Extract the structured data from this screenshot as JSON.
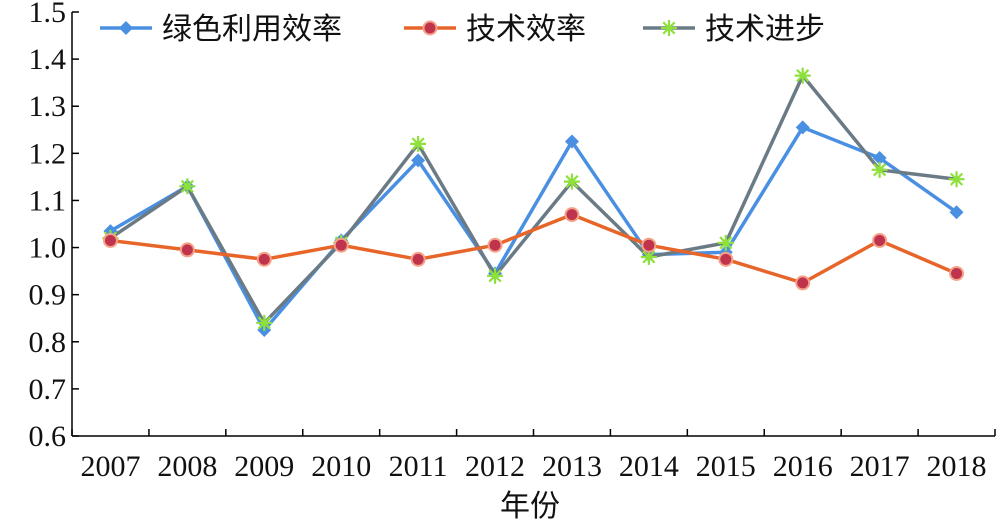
{
  "chart_data": {
    "type": "line",
    "title": "",
    "xlabel": "年份",
    "ylabel": "",
    "ylim": [
      0.6,
      1.5
    ],
    "y_ticks": [
      "0.6",
      "0.7",
      "0.8",
      "0.9",
      "1.0",
      "1.1",
      "1.2",
      "1.3",
      "1.4",
      "1.5"
    ],
    "categories": [
      "2007",
      "2008",
      "2009",
      "2010",
      "2011",
      "2012",
      "2013",
      "2014",
      "2015",
      "2016",
      "2017",
      "2018"
    ],
    "legend_position": "top",
    "grid": false,
    "series": [
      {
        "name": "绿色利用效率",
        "color": "#4a90e2",
        "marker": "diamond",
        "values": [
          1.035,
          1.13,
          0.825,
          1.015,
          1.185,
          0.945,
          1.225,
          0.985,
          0.99,
          1.255,
          1.19,
          1.075
        ]
      },
      {
        "name": "技术效率",
        "color": "#e8652a",
        "marker": "circle",
        "values": [
          1.015,
          0.995,
          0.975,
          1.005,
          0.975,
          1.005,
          1.07,
          1.005,
          0.975,
          0.925,
          1.015,
          0.945
        ]
      },
      {
        "name": "技术进步",
        "color": "#6b7b86",
        "marker": "star",
        "marker_color": "#8ee03a",
        "values": [
          1.02,
          1.13,
          0.84,
          1.01,
          1.22,
          0.94,
          1.14,
          0.98,
          1.01,
          1.365,
          1.165,
          1.145
        ]
      }
    ]
  }
}
